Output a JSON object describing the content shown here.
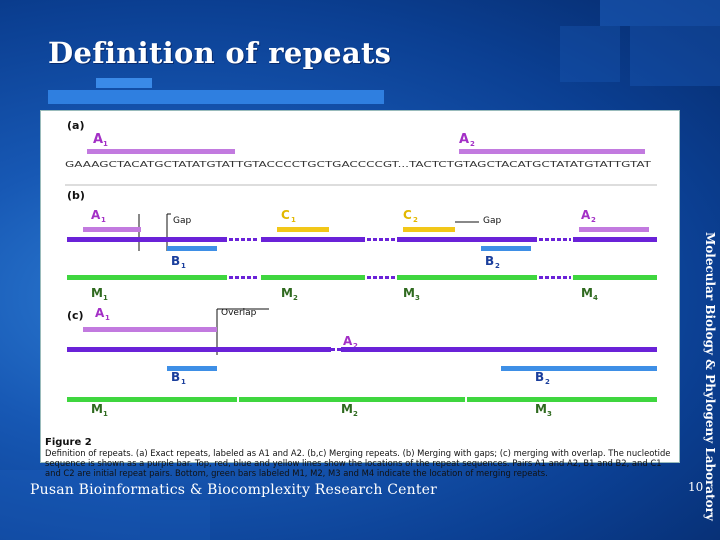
{
  "slide": {
    "title": "Definition of repeats",
    "side_text": "Molecular Biology & Phylogeny Laboratory",
    "footer": "Pusan Bioinformatics & Biocomplexity Research Center",
    "page_number": "10"
  },
  "colors": {
    "purple": "#6a22d8",
    "magenta": "#c27adf",
    "blue": "#3e8fe6",
    "yellow": "#f2c718",
    "green": "#3fd63f",
    "label": "#a32fc6"
  },
  "figure": {
    "panel_a": {
      "tag": "(a)",
      "label_a1": "A",
      "label_a1_sub": "1",
      "label_a2": "A",
      "label_a2_sub": "2",
      "sequence": "GAAAGCTACATGCTATATGTATTGTACCCCTGCTGACCCCGT...TACTCTGTAGCTACATGCTATATGTATTGTAT"
    },
    "panel_b": {
      "tag": "(b)",
      "a1": "A",
      "a1_sub": "1",
      "gap1": "Gap",
      "c1": "C",
      "c1_sub": "1",
      "c2": "C",
      "c2_sub": "2",
      "gap2": "Gap",
      "a2": "A",
      "a2_sub": "2",
      "b1": "B",
      "b1_sub": "1",
      "b2": "B",
      "b2_sub": "2",
      "m1": "M",
      "m1_sub": "1",
      "m2": "M",
      "m2_sub": "2",
      "m3": "M",
      "m3_sub": "3",
      "m4": "M",
      "m4_sub": "4"
    },
    "panel_c": {
      "tag": "(c)",
      "a1": "A",
      "a1_sub": "1",
      "overlap": "Overlap",
      "a2": "A",
      "a2_sub": "2",
      "b1": "B",
      "b1_sub": "1",
      "b2": "B",
      "b2_sub": "2",
      "m1": "M",
      "m1_sub": "1",
      "m2": "M",
      "m2_sub": "2",
      "m3": "M",
      "m3_sub": "3"
    },
    "caption": {
      "title": "Figure 2",
      "text": "Definition of repeats. (a) Exact repeats, labeled as A1 and A2. (b,c) Merging repeats. (b) Merging with gaps; (c) merging with overlap. The nucleotide sequence is shown as a purple bar. Top, red, blue and yellow lines show the locations of the repeat sequences. Pairs A1 and A2, B1 and B2, and C1 and C2 are initial repeat pairs. Bottom, green bars labeled M1, M2, M3 and M4 indicate the location of merging repeats."
    }
  }
}
